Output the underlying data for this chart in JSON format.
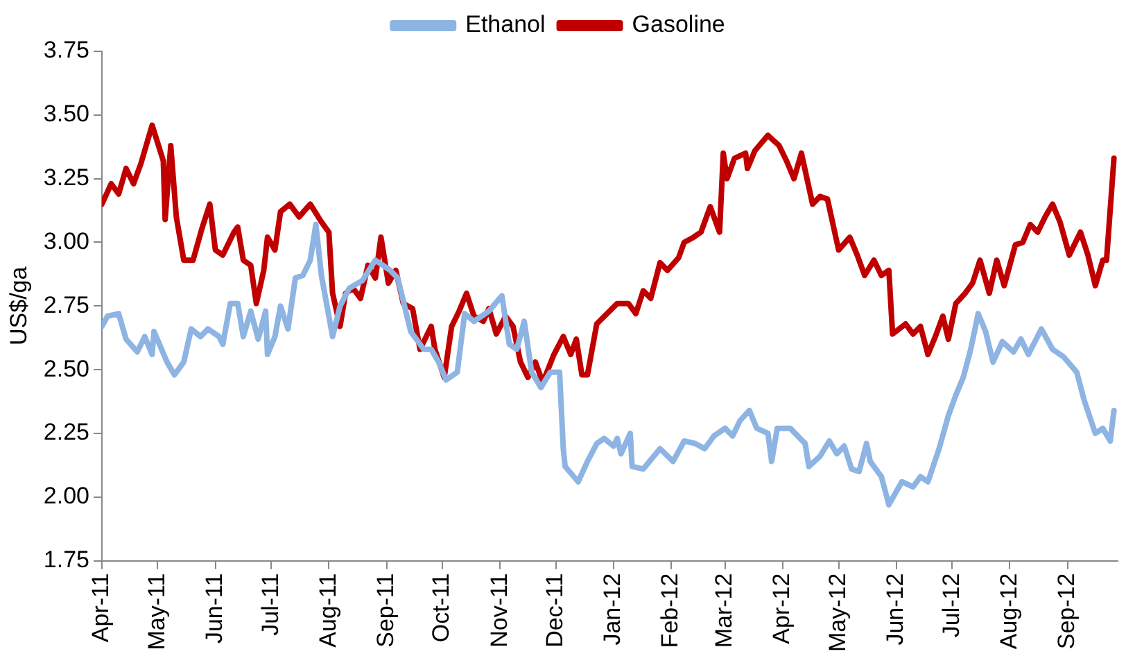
{
  "chart_data": {
    "type": "line",
    "ylabel": "US$/ga",
    "legend": "top",
    "grid": false,
    "marker": "none",
    "line_style": "solid",
    "ylim": [
      1.75,
      3.75
    ],
    "yticks": [
      {
        "value": 1.75,
        "label": "1.75"
      },
      {
        "value": 2,
        "label": "2.00"
      },
      {
        "value": 2.25,
        "label": "2.25"
      },
      {
        "value": 2.5,
        "label": "2.50"
      },
      {
        "value": 2.75,
        "label": "2.75"
      },
      {
        "value": 3,
        "label": "3.00"
      },
      {
        "value": 3.25,
        "label": "3.25"
      },
      {
        "value": 3.5,
        "label": "3.50"
      },
      {
        "value": 3.75,
        "label": "3.75"
      }
    ],
    "xlim": [
      "2011-04-01",
      "2012-09-28"
    ],
    "xticks": [
      {
        "value": "2011-04-01",
        "label": "Apr-11"
      },
      {
        "value": "2011-05-01",
        "label": "May-11"
      },
      {
        "value": "2011-06-01",
        "label": "Jun-11"
      },
      {
        "value": "2011-07-01",
        "label": "Jul-11"
      },
      {
        "value": "2011-08-01",
        "label": "Aug-11"
      },
      {
        "value": "2011-09-01",
        "label": "Sep-11"
      },
      {
        "value": "2011-10-01",
        "label": "Oct-11"
      },
      {
        "value": "2011-11-01",
        "label": "Nov-11"
      },
      {
        "value": "2011-12-01",
        "label": "Dec-11"
      },
      {
        "value": "2012-01-01",
        "label": "Jan-12"
      },
      {
        "value": "2012-02-01",
        "label": "Feb-12"
      },
      {
        "value": "2012-03-01",
        "label": "Mar-12"
      },
      {
        "value": "2012-04-01",
        "label": "Apr-12"
      },
      {
        "value": "2012-05-01",
        "label": "May-12"
      },
      {
        "value": "2012-06-01",
        "label": "Jun-12"
      },
      {
        "value": "2012-07-01",
        "label": "Jul-12"
      },
      {
        "value": "2012-08-01",
        "label": "Aug-12"
      },
      {
        "value": "2012-09-01",
        "label": "Sep-12"
      }
    ],
    "series": [
      {
        "name": "Ethanol",
        "color": "#8db4e2",
        "x": [
          "2011-04-01",
          "2011-04-04",
          "2011-04-10",
          "2011-04-14",
          "2011-04-20",
          "2011-04-24",
          "2011-04-28",
          "2011-04-29",
          "2011-05-06",
          "2011-05-10",
          "2011-05-15",
          "2011-05-19",
          "2011-05-24",
          "2011-05-28",
          "2011-06-03",
          "2011-06-05",
          "2011-06-09",
          "2011-06-13",
          "2011-06-16",
          "2011-06-20",
          "2011-06-24",
          "2011-06-28",
          "2011-06-29",
          "2011-07-03",
          "2011-07-06",
          "2011-07-10",
          "2011-07-14",
          "2011-07-18",
          "2011-07-22",
          "2011-07-25",
          "2011-07-28",
          "2011-08-03",
          "2011-08-07",
          "2011-08-12",
          "2011-08-19",
          "2011-08-26",
          "2011-09-03",
          "2011-09-07",
          "2011-09-14",
          "2011-09-21",
          "2011-09-25",
          "2011-09-29",
          "2011-10-03",
          "2011-10-09",
          "2011-10-13",
          "2011-10-18",
          "2011-10-26",
          "2011-11-02",
          "2011-11-06",
          "2011-11-10",
          "2011-11-14",
          "2011-11-18",
          "2011-11-23",
          "2011-11-28",
          "2011-12-03",
          "2011-12-05",
          "2011-12-06",
          "2011-12-13",
          "2011-12-18",
          "2011-12-23",
          "2011-12-27",
          "2012-01-01",
          "2012-01-03",
          "2012-01-05",
          "2012-01-10",
          "2012-01-11",
          "2012-01-17",
          "2012-01-26",
          "2012-02-02",
          "2012-02-08",
          "2012-02-14",
          "2012-02-19",
          "2012-02-24",
          "2012-03-01",
          "2012-03-05",
          "2012-03-09",
          "2012-03-14",
          "2012-03-18",
          "2012-03-24",
          "2012-03-26",
          "2012-03-29",
          "2012-04-05",
          "2012-04-13",
          "2012-04-15",
          "2012-04-21",
          "2012-04-26",
          "2012-04-30",
          "2012-05-04",
          "2012-05-08",
          "2012-05-12",
          "2012-05-16",
          "2012-05-18",
          "2012-05-24",
          "2012-05-28",
          "2012-06-04",
          "2012-06-10",
          "2012-06-14",
          "2012-06-18",
          "2012-06-24",
          "2012-06-29",
          "2012-07-03",
          "2012-07-07",
          "2012-07-11",
          "2012-07-15",
          "2012-07-19",
          "2012-07-23",
          "2012-07-28",
          "2012-08-03",
          "2012-08-07",
          "2012-08-11",
          "2012-08-18",
          "2012-08-24",
          "2012-08-30",
          "2012-09-06",
          "2012-09-10",
          "2012-09-16",
          "2012-09-20",
          "2012-09-24",
          "2012-09-26"
        ],
        "values": [
          2.67,
          2.71,
          2.72,
          2.62,
          2.57,
          2.63,
          2.56,
          2.65,
          2.53,
          2.48,
          2.53,
          2.66,
          2.63,
          2.66,
          2.63,
          2.6,
          2.76,
          2.76,
          2.63,
          2.73,
          2.62,
          2.73,
          2.56,
          2.63,
          2.75,
          2.66,
          2.86,
          2.87,
          2.93,
          3.07,
          2.87,
          2.63,
          2.75,
          2.82,
          2.85,
          2.93,
          2.89,
          2.86,
          2.65,
          2.58,
          2.58,
          2.53,
          2.46,
          2.49,
          2.72,
          2.69,
          2.73,
          2.79,
          2.6,
          2.58,
          2.69,
          2.49,
          2.43,
          2.49,
          2.49,
          2.19,
          2.12,
          2.06,
          2.14,
          2.21,
          2.23,
          2.2,
          2.23,
          2.17,
          2.25,
          2.12,
          2.11,
          2.19,
          2.14,
          2.22,
          2.21,
          2.19,
          2.24,
          2.27,
          2.24,
          2.3,
          2.34,
          2.27,
          2.25,
          2.14,
          2.27,
          2.27,
          2.21,
          2.12,
          2.16,
          2.22,
          2.17,
          2.2,
          2.11,
          2.1,
          2.21,
          2.14,
          2.08,
          1.97,
          2.06,
          2.04,
          2.08,
          2.06,
          2.19,
          2.32,
          2.4,
          2.47,
          2.58,
          2.72,
          2.65,
          2.53,
          2.61,
          2.57,
          2.62,
          2.56,
          2.66,
          2.58,
          2.55,
          2.49,
          2.38,
          2.25,
          2.27,
          2.22,
          2.34
        ]
      },
      {
        "name": "Gasoline",
        "color": "#c00000",
        "x": [
          "2011-04-01",
          "2011-04-06",
          "2011-04-10",
          "2011-04-14",
          "2011-04-18",
          "2011-04-22",
          "2011-04-28",
          "2011-05-04",
          "2011-05-05",
          "2011-05-08",
          "2011-05-11",
          "2011-05-15",
          "2011-05-20",
          "2011-05-25",
          "2011-05-29",
          "2011-06-01",
          "2011-06-05",
          "2011-06-11",
          "2011-06-13",
          "2011-06-16",
          "2011-06-20",
          "2011-06-23",
          "2011-06-27",
          "2011-06-29",
          "2011-07-03",
          "2011-07-06",
          "2011-07-11",
          "2011-07-16",
          "2011-07-22",
          "2011-07-28",
          "2011-08-01",
          "2011-08-03",
          "2011-08-07",
          "2011-08-10",
          "2011-08-14",
          "2011-08-18",
          "2011-08-22",
          "2011-08-26",
          "2011-08-29",
          "2011-09-02",
          "2011-09-06",
          "2011-09-10",
          "2011-09-15",
          "2011-09-19",
          "2011-09-25",
          "2011-09-27",
          "2011-10-02",
          "2011-10-06",
          "2011-10-10",
          "2011-10-14",
          "2011-10-18",
          "2011-10-23",
          "2011-10-26",
          "2011-10-30",
          "2011-11-04",
          "2011-11-08",
          "2011-11-12",
          "2011-11-16",
          "2011-11-20",
          "2011-11-24",
          "2011-11-30",
          "2011-12-05",
          "2011-12-09",
          "2011-12-12",
          "2011-12-15",
          "2011-12-18",
          "2011-12-23",
          "2012-01-03",
          "2012-01-09",
          "2012-01-13",
          "2012-01-17",
          "2012-01-21",
          "2012-01-26",
          "2012-01-30",
          "2012-02-05",
          "2012-02-08",
          "2012-02-13",
          "2012-02-17",
          "2012-02-22",
          "2012-02-27",
          "2012-02-29",
          "2012-03-02",
          "2012-03-06",
          "2012-03-12",
          "2012-03-13",
          "2012-03-17",
          "2012-03-24",
          "2012-03-30",
          "2012-04-03",
          "2012-04-07",
          "2012-04-11",
          "2012-04-17",
          "2012-04-21",
          "2012-04-25",
          "2012-05-01",
          "2012-05-07",
          "2012-05-11",
          "2012-05-15",
          "2012-05-20",
          "2012-05-24",
          "2012-05-28",
          "2012-05-30",
          "2012-06-06",
          "2012-06-10",
          "2012-06-14",
          "2012-06-18",
          "2012-06-22",
          "2012-06-26",
          "2012-06-29",
          "2012-07-03",
          "2012-07-08",
          "2012-07-12",
          "2012-07-16",
          "2012-07-21",
          "2012-07-25",
          "2012-07-29",
          "2012-08-04",
          "2012-08-08",
          "2012-08-12",
          "2012-08-16",
          "2012-08-20",
          "2012-08-24",
          "2012-08-28",
          "2012-09-02",
          "2012-09-08",
          "2012-09-12",
          "2012-09-16",
          "2012-09-20",
          "2012-09-22",
          "2012-09-26"
        ],
        "values": [
          3.15,
          3.23,
          3.19,
          3.29,
          3.23,
          3.31,
          3.46,
          3.32,
          3.09,
          3.38,
          3.1,
          2.93,
          2.93,
          3.06,
          3.15,
          2.97,
          2.95,
          3.04,
          3.06,
          2.93,
          2.91,
          2.76,
          2.89,
          3.02,
          2.97,
          3.12,
          3.15,
          3.1,
          3.15,
          3.08,
          3.04,
          2.8,
          2.67,
          2.8,
          2.82,
          2.78,
          2.91,
          2.86,
          3.02,
          2.84,
          2.89,
          2.76,
          2.74,
          2.58,
          2.67,
          2.58,
          2.47,
          2.67,
          2.73,
          2.8,
          2.71,
          2.69,
          2.74,
          2.64,
          2.71,
          2.67,
          2.53,
          2.47,
          2.53,
          2.45,
          2.56,
          2.63,
          2.56,
          2.62,
          2.48,
          2.48,
          2.68,
          2.76,
          2.76,
          2.72,
          2.81,
          2.78,
          2.92,
          2.89,
          2.94,
          3.0,
          3.02,
          3.04,
          3.14,
          3.04,
          3.35,
          3.25,
          3.33,
          3.35,
          3.29,
          3.36,
          3.42,
          3.38,
          3.32,
          3.25,
          3.35,
          3.15,
          3.18,
          3.17,
          2.97,
          3.02,
          2.95,
          2.87,
          2.93,
          2.87,
          2.89,
          2.64,
          2.68,
          2.64,
          2.67,
          2.56,
          2.63,
          2.71,
          2.62,
          2.76,
          2.8,
          2.84,
          2.93,
          2.8,
          2.93,
          2.83,
          2.99,
          3.0,
          3.07,
          3.04,
          3.1,
          3.15,
          3.08,
          2.95,
          3.04,
          2.95,
          2.83,
          2.93,
          2.93,
          3.33
        ]
      }
    ]
  }
}
